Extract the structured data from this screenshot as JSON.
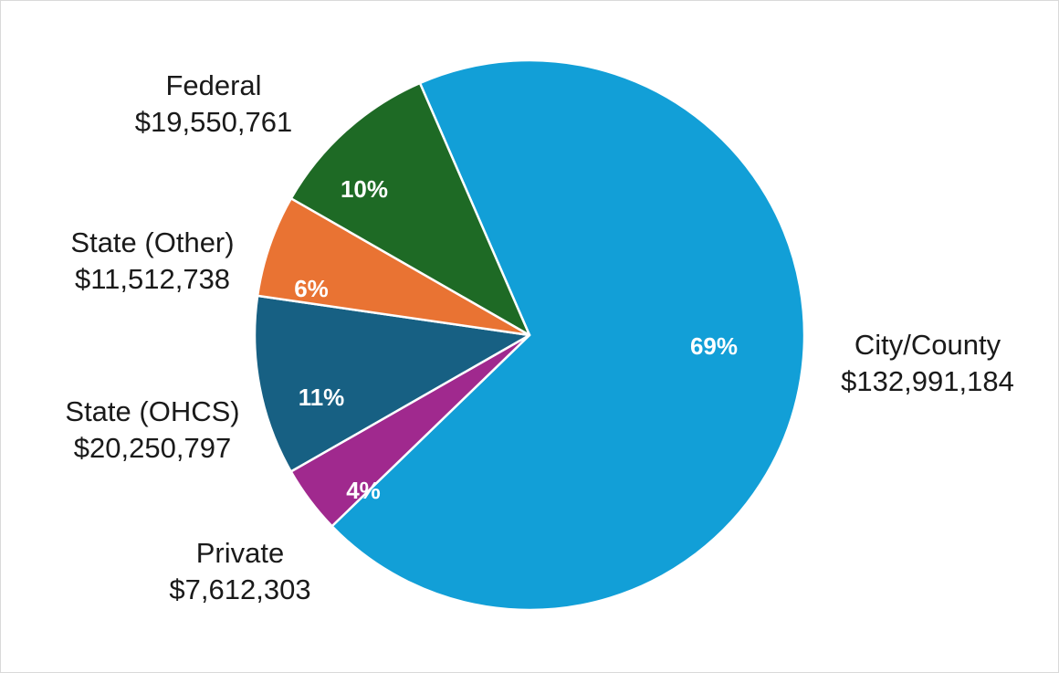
{
  "chart_data": {
    "type": "pie",
    "start_angle_deg": -23.5,
    "direction": "clockwise",
    "slice_border_color": "#ffffff",
    "slices": [
      {
        "key": "city",
        "label": "City/County",
        "value_text": "$132,991,184",
        "value": 132991184,
        "percent_label": "69%",
        "color": "#129fd7"
      },
      {
        "key": "private",
        "label": "Private",
        "value_text": "$7,612,303",
        "value": 7612303,
        "percent_label": "4%",
        "color": "#a0298e"
      },
      {
        "key": "ohcs",
        "label": "State (OHCS)",
        "value_text": "$20,250,797",
        "value": 20250797,
        "percent_label": "11%",
        "color": "#176083"
      },
      {
        "key": "other",
        "label": "State (Other)",
        "value_text": "$11,512,738",
        "value": 11512738,
        "percent_label": "6%",
        "color": "#e97333"
      },
      {
        "key": "federal",
        "label": "Federal",
        "value_text": "$19,550,761",
        "value": 19550761,
        "percent_label": "10%",
        "color": "#1e6a25"
      }
    ]
  }
}
